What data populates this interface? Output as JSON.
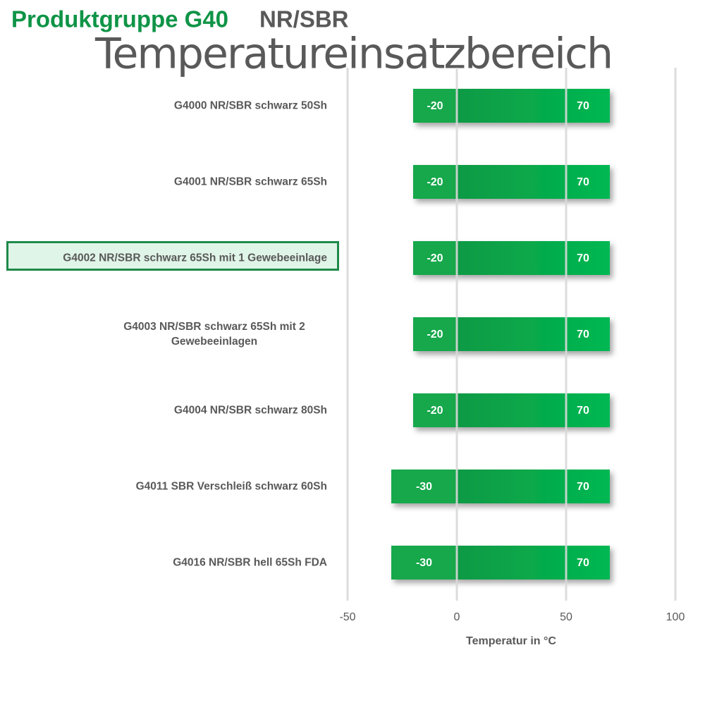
{
  "chart_data": {
    "type": "bar",
    "orientation": "horizontal",
    "stacked": true,
    "title": [
      "Produktgruppe G40",
      "NR/SBR"
    ],
    "subtitle": "Temperatureinsatzbereich",
    "categories": [
      "G4000 NR/SBR schwarz 50Sh",
      "G4001 NR/SBR schwarz 65Sh",
      "G4002 NR/SBR schwarz 65Sh mit 1 Gewebeeinlage",
      "G4003 NR/SBR schwarz 65Sh mit 2 Gewebeeinlagen",
      "G4004 NR/SBR schwarz 80Sh",
      "G4011 SBR Verschleiß schwarz 60Sh",
      "G4016 NR/SBR hell 65Sh FDA"
    ],
    "highlighted_category": 2,
    "series": [
      {
        "color": "#17a84c",
        "values": [
          -20,
          -20,
          -20,
          -20,
          -20,
          -30,
          -30
        ]
      },
      {
        "color": "#0fb04f",
        "values": [
          70,
          70,
          70,
          70,
          70,
          70,
          70
        ]
      }
    ],
    "x_label": "Temperatur in °C",
    "xlim": [
      -50,
      100
    ],
    "xticks": [
      -50,
      0,
      50,
      100
    ],
    "grid": true
  }
}
